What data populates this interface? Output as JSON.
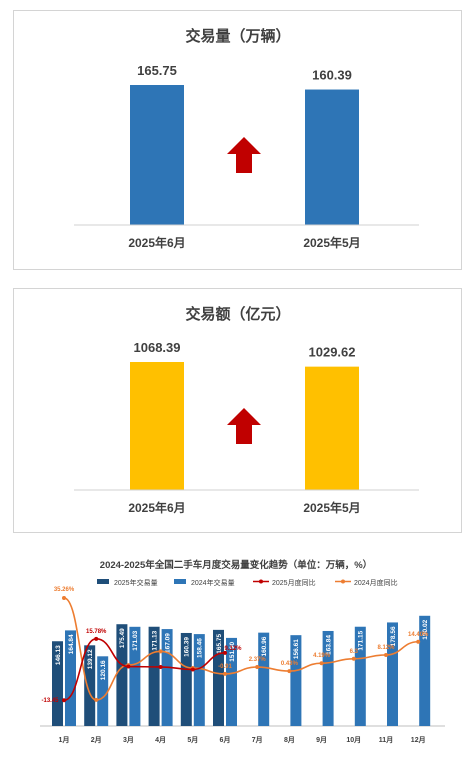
{
  "chart_data": [
    {
      "type": "bar",
      "title": "交易量（万辆）",
      "categories": [
        "2025年6月",
        "2025年5月"
      ],
      "values": [
        165.75,
        160.39
      ],
      "value_labels": [
        "165.75",
        "160.39"
      ],
      "color": "#2e75b6",
      "arrow_color": "#c00000",
      "trend_arrow": "up"
    },
    {
      "type": "bar",
      "title": "交易额（亿元）",
      "categories": [
        "2025年6月",
        "2025年5月"
      ],
      "values": [
        1068.39,
        1029.62
      ],
      "value_labels": [
        "1068.39",
        "1029.62"
      ],
      "color": "#ffc000",
      "arrow_color": "#c00000",
      "trend_arrow": "up"
    },
    {
      "type": "bar+line",
      "title": "2024-2025年全国二手车月度交易量变化趋势（单位：万辆，%）",
      "categories": [
        "1月",
        "2月",
        "3月",
        "4月",
        "5月",
        "6月",
        "7月",
        "8月",
        "9月",
        "10月",
        "11月",
        "12月"
      ],
      "legend": [
        "2025年交易量",
        "2024年交易量",
        "2025月度同比",
        "2024月度同比"
      ],
      "legend_position": "top",
      "series": [
        {
          "name": "2025年交易量",
          "kind": "bar",
          "color": "#1f4e79",
          "values": [
            146.13,
            139.12,
            175.49,
            171.13,
            160.39,
            165.75,
            null,
            null,
            null,
            null,
            null,
            null
          ],
          "labels": [
            "146.13",
            "139.12",
            "175.49",
            "171.13",
            "160.39",
            "165.75",
            "",
            "",
            "",
            "",
            "",
            ""
          ]
        },
        {
          "name": "2024年交易量",
          "kind": "bar",
          "color": "#2e75b6",
          "values": [
            164.84,
            120.16,
            171.03,
            167.09,
            158.46,
            151.9,
            160.96,
            156.61,
            163.84,
            171.15,
            178.56,
            190.02
          ],
          "labels": [
            "164.84",
            "120.16",
            "171.03",
            "167.09",
            "158.46",
            "151.90",
            "160.96",
            "156.61",
            "163.84",
            "171.15",
            "178.56",
            "190.02"
          ]
        },
        {
          "name": "2025月度同比",
          "kind": "line",
          "color": "#c00000",
          "values": [
            -13.45,
            15.78,
            2.6,
            2.4,
            1.2,
            9.12,
            null,
            null,
            null,
            null,
            null,
            null
          ],
          "labels": [
            "-13.45",
            "15.78%",
            "",
            "",
            "",
            "9.12%",
            "",
            "",
            "",
            "",
            "",
            ""
          ]
        },
        {
          "name": "2024月度同比",
          "kind": "line",
          "color": "#ed7d31",
          "values": [
            35.26,
            -13.3,
            3.3,
            9.8,
            1.9,
            -0.91,
            2.37,
            0.43,
            4.19,
            6.3,
            8.12,
            14.4
          ],
          "labels": [
            "35.26%",
            "",
            "",
            "",
            "",
            "-0.91",
            "2.37%",
            "0.43%",
            "4.19%",
            "6.3",
            "8.12%",
            "14.40%"
          ]
        }
      ]
    }
  ]
}
